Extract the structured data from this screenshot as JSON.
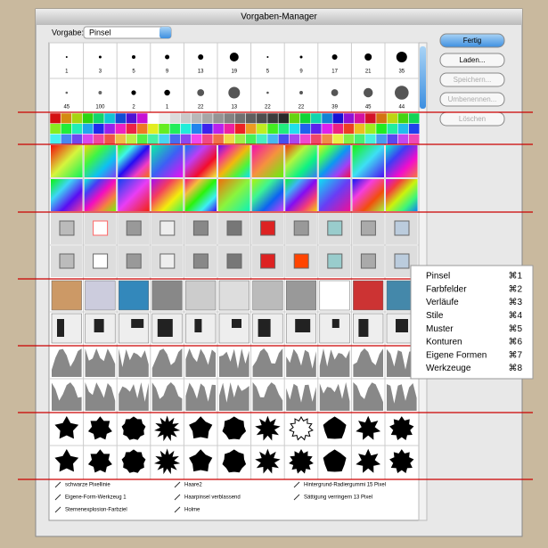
{
  "window": {
    "title": "Vorgaben-Manager"
  },
  "preset": {
    "label": "Vorgabe:",
    "value": "Pinsel"
  },
  "buttons": [
    "Fertig",
    "Laden...",
    "Speichern...",
    "Umbenennen...",
    "Löschen"
  ],
  "brush_sizes": [
    [
      1,
      3,
      5,
      9,
      13,
      19,
      5,
      9,
      17,
      21,
      35
    ],
    [
      45,
      100,
      2,
      1,
      22,
      13,
      22,
      22,
      39,
      45,
      44
    ]
  ],
  "menu": [
    {
      "label": "Pinsel",
      "shortcut": "⌘1"
    },
    {
      "label": "Farbfelder",
      "shortcut": "⌘2"
    },
    {
      "label": "Verläufe",
      "shortcut": "⌘3"
    },
    {
      "label": "Stile",
      "shortcut": "⌘4"
    },
    {
      "label": "Muster",
      "shortcut": "⌘5"
    },
    {
      "label": "Konturen",
      "shortcut": "⌘6"
    },
    {
      "label": "Eigene Formen",
      "shortcut": "⌘7"
    },
    {
      "label": "Werkzeuge",
      "shortcut": "⌘8"
    }
  ],
  "tool_list": [
    [
      "schwarze Pixellinie",
      "Haare2",
      "Hintergrund-Radiergummi 15 Pixel"
    ],
    [
      "Eigene-Form-Werkzeug 1",
      "Haarpinsel verblassend",
      "Sättigung verringern 13 Pixel"
    ],
    [
      "Sternenexplosion-Farbziel",
      "Holme"
    ]
  ]
}
